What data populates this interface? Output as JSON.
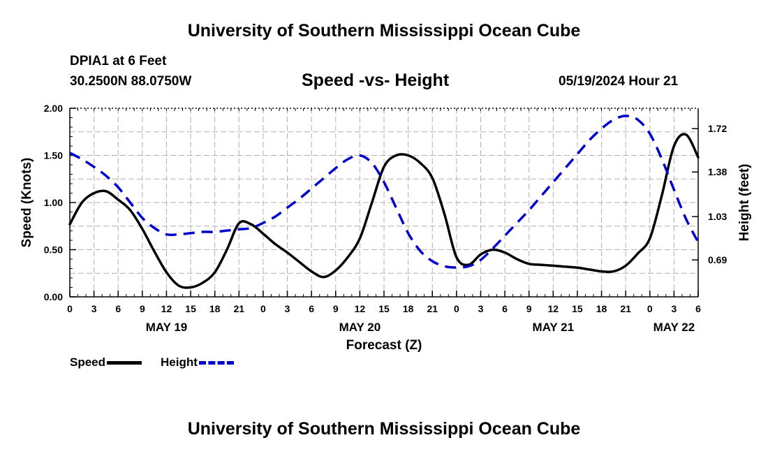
{
  "header": {
    "title": "University of Southern Mississippi Ocean Cube",
    "station": "DPIA1 at 6 Feet",
    "coordinates": "30.2500N  88.0750W",
    "run_time": "05/19/2024 Hour 21"
  },
  "footer": {
    "title": "University of Southern Mississippi Ocean Cube"
  },
  "legend": [
    {
      "label": "Speed",
      "color": "#000000",
      "style": "solid"
    },
    {
      "label": "Height",
      "color": "#0000cc",
      "style": "dashed"
    }
  ],
  "chart_data": {
    "type": "line",
    "title": "Speed -vs- Height",
    "xlabel": "Forecast (Z)",
    "ylabel": "Speed (Knots)",
    "y2label": "Height (feet)",
    "xlim": [
      0,
      78
    ],
    "ylim": [
      0,
      2
    ],
    "y2lim": [
      0.4,
      1.88
    ],
    "x_tick_values": [
      0,
      3,
      6,
      9,
      12,
      15,
      18,
      21,
      24,
      27,
      30,
      33,
      36,
      39,
      42,
      45,
      48,
      51,
      54,
      57,
      60,
      63,
      66,
      69,
      72,
      75,
      78
    ],
    "x_tick_labels": [
      "0",
      "3",
      "6",
      "9",
      "12",
      "15",
      "18",
      "21",
      "0",
      "3",
      "6",
      "9",
      "12",
      "15",
      "18",
      "21",
      "0",
      "3",
      "6",
      "9",
      "12",
      "15",
      "18",
      "21",
      "0",
      "3",
      "6"
    ],
    "day_labels": [
      {
        "x": 12,
        "label": "MAY 19"
      },
      {
        "x": 36,
        "label": "MAY 20"
      },
      {
        "x": 60,
        "label": "MAY 21"
      },
      {
        "x": 75,
        "label": "MAY 22"
      }
    ],
    "y_ticks": [
      0.0,
      0.5,
      1.0,
      1.5,
      2.0
    ],
    "y_tick_labels": [
      "0.00",
      "0.50",
      "1.00",
      "1.50",
      "2.00"
    ],
    "y2_ticks": [
      0.69,
      1.03,
      1.38,
      1.72
    ],
    "y2_tick_labels": [
      "0.69",
      "1.03",
      "1.38",
      "1.72"
    ],
    "grid": true,
    "series": [
      {
        "name": "Speed",
        "axis": "left",
        "color": "#000000",
        "dash": false,
        "x": [
          0,
          1.5,
          3,
          4.5,
          6,
          7.5,
          9,
          10.5,
          12,
          13.5,
          15,
          16.5,
          18,
          19.5,
          21,
          22.5,
          24,
          25.5,
          27,
          28.5,
          30,
          31.5,
          33,
          34.5,
          36,
          37.5,
          39,
          40.5,
          42,
          43.5,
          45,
          46.5,
          48,
          49.5,
          51,
          52.5,
          54,
          55.5,
          57,
          58.5,
          60,
          61.5,
          63,
          64.5,
          66,
          67.5,
          69,
          70.5,
          72,
          73.5,
          75,
          76.5,
          78
        ],
        "y": [
          0.77,
          1.0,
          1.1,
          1.12,
          1.03,
          0.92,
          0.72,
          0.48,
          0.26,
          0.12,
          0.1,
          0.15,
          0.26,
          0.5,
          0.78,
          0.77,
          0.67,
          0.56,
          0.47,
          0.37,
          0.27,
          0.21,
          0.28,
          0.42,
          0.62,
          1.0,
          1.38,
          1.5,
          1.5,
          1.42,
          1.26,
          0.88,
          0.42,
          0.34,
          0.45,
          0.5,
          0.47,
          0.4,
          0.35,
          0.34,
          0.33,
          0.32,
          0.31,
          0.29,
          0.27,
          0.27,
          0.33,
          0.46,
          0.62,
          1.08,
          1.6,
          1.72,
          1.48
        ]
      },
      {
        "name": "Height",
        "axis": "right",
        "color": "#0000cc",
        "dash": true,
        "x": [
          0,
          1.5,
          3,
          4.5,
          6,
          7.5,
          9,
          10.5,
          12,
          13.5,
          15,
          16.5,
          18,
          19.5,
          21,
          22.5,
          24,
          25.5,
          27,
          28.5,
          30,
          31.5,
          33,
          34.5,
          36,
          37.5,
          39,
          40.5,
          42,
          43.5,
          45,
          46.5,
          48,
          49.5,
          51,
          52.5,
          54,
          55.5,
          57,
          58.5,
          60,
          61.5,
          63,
          64.5,
          66,
          67.5,
          69,
          70.5,
          72,
          73.5,
          75,
          76.5,
          78
        ],
        "y": [
          1.53,
          1.48,
          1.42,
          1.35,
          1.26,
          1.14,
          1.02,
          0.94,
          0.89,
          0.89,
          0.9,
          0.91,
          0.91,
          0.92,
          0.93,
          0.94,
          0.98,
          1.03,
          1.1,
          1.17,
          1.25,
          1.33,
          1.41,
          1.48,
          1.51,
          1.45,
          1.3,
          1.1,
          0.9,
          0.76,
          0.68,
          0.64,
          0.63,
          0.64,
          0.69,
          0.78,
          0.88,
          0.98,
          1.08,
          1.19,
          1.3,
          1.41,
          1.52,
          1.63,
          1.72,
          1.79,
          1.82,
          1.79,
          1.68,
          1.48,
          1.24,
          1.01,
          0.83
        ]
      }
    ]
  }
}
